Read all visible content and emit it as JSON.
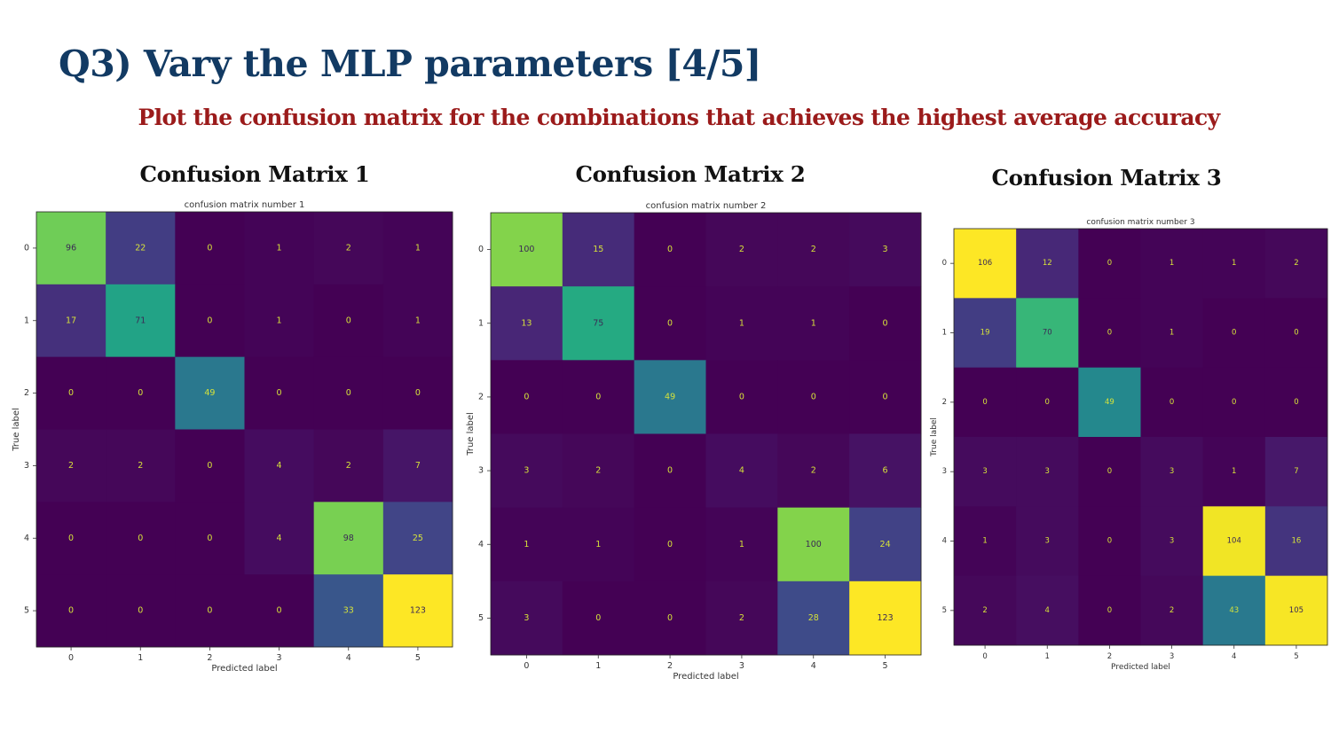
{
  "slide": {
    "title": "Q3) Vary the MLP parameters [4/5]",
    "subtitle": "Plot the confusion matrix for the combinations that achieves the highest average accuracy",
    "title_color": "#123a63",
    "subtitle_color": "#9b1b1b"
  },
  "colormap": "viridis",
  "headings": [
    "Confusion Matrix 1",
    "Confusion Matrix 2",
    "Confusion Matrix 3"
  ],
  "chart_data": [
    {
      "type": "heatmap",
      "title": "confusion matrix number 1",
      "xlabel": "Predicted label",
      "ylabel": "True label",
      "x_labels": [
        "0",
        "1",
        "2",
        "3",
        "4",
        "5"
      ],
      "y_labels": [
        "0",
        "1",
        "2",
        "3",
        "4",
        "5"
      ],
      "values": [
        [
          96,
          22,
          0,
          1,
          2,
          1
        ],
        [
          17,
          71,
          0,
          1,
          0,
          1
        ],
        [
          0,
          0,
          49,
          0,
          0,
          0
        ],
        [
          2,
          2,
          0,
          4,
          2,
          7
        ],
        [
          0,
          0,
          0,
          4,
          98,
          25
        ],
        [
          0,
          0,
          0,
          0,
          33,
          123
        ]
      ]
    },
    {
      "type": "heatmap",
      "title": "confusion matrix number 2",
      "xlabel": "Predicted label",
      "ylabel": "True label",
      "x_labels": [
        "0",
        "1",
        "2",
        "3",
        "4",
        "5"
      ],
      "y_labels": [
        "0",
        "1",
        "2",
        "3",
        "4",
        "5"
      ],
      "values": [
        [
          100,
          15,
          0,
          2,
          2,
          3
        ],
        [
          13,
          75,
          0,
          1,
          1,
          0
        ],
        [
          0,
          0,
          49,
          0,
          0,
          0
        ],
        [
          3,
          2,
          0,
          4,
          2,
          6
        ],
        [
          1,
          1,
          0,
          1,
          100,
          24
        ],
        [
          3,
          0,
          0,
          2,
          28,
          123
        ]
      ]
    },
    {
      "type": "heatmap",
      "title": "confusion matrix number 3",
      "xlabel": "Predicted label",
      "ylabel": "True label",
      "x_labels": [
        "0",
        "1",
        "2",
        "3",
        "4",
        "5"
      ],
      "y_labels": [
        "0",
        "1",
        "2",
        "3",
        "4",
        "5"
      ],
      "values": [
        [
          106,
          12,
          0,
          1,
          1,
          2
        ],
        [
          19,
          70,
          0,
          1,
          0,
          0
        ],
        [
          0,
          0,
          49,
          0,
          0,
          0
        ],
        [
          3,
          3,
          0,
          3,
          1,
          7
        ],
        [
          1,
          3,
          0,
          3,
          104,
          16
        ],
        [
          2,
          4,
          0,
          2,
          43,
          105
        ]
      ]
    }
  ]
}
